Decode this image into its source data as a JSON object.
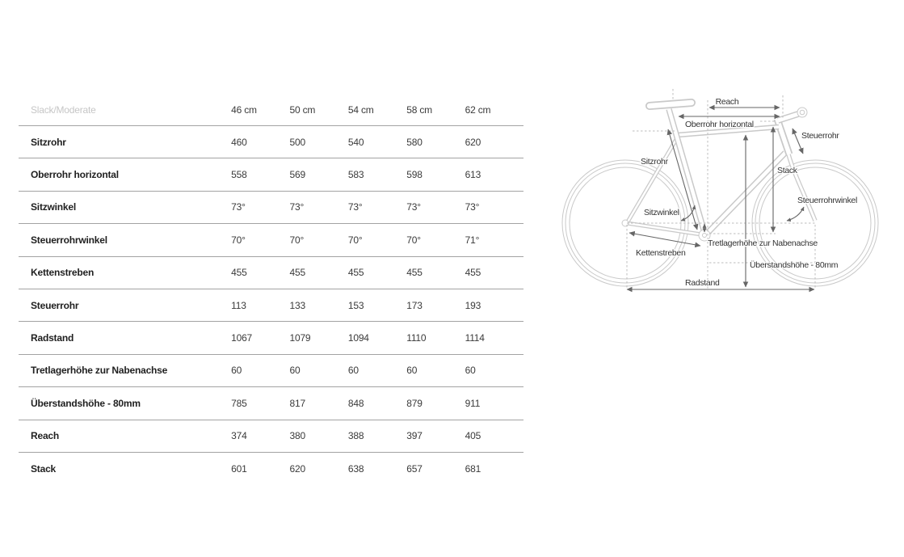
{
  "chart_data": {
    "type": "table",
    "title": "Slack/Moderate",
    "columns": [
      "46 cm",
      "50 cm",
      "54 cm",
      "58 cm",
      "62 cm"
    ],
    "rows": [
      {
        "label": "Sitzrohr",
        "values": [
          "460",
          "500",
          "540",
          "580",
          "620"
        ]
      },
      {
        "label": "Oberrohr horizontal",
        "values": [
          "558",
          "569",
          "583",
          "598",
          "613"
        ]
      },
      {
        "label": "Sitzwinkel",
        "values": [
          "73°",
          "73°",
          "73°",
          "73°",
          "73°"
        ]
      },
      {
        "label": "Steuerrohrwinkel",
        "values": [
          "70°",
          "70°",
          "70°",
          "70°",
          "71°"
        ]
      },
      {
        "label": "Kettenstreben",
        "values": [
          "455",
          "455",
          "455",
          "455",
          "455"
        ]
      },
      {
        "label": "Steuerrohr",
        "values": [
          "113",
          "133",
          "153",
          "173",
          "193"
        ]
      },
      {
        "label": "Radstand",
        "values": [
          "1067",
          "1079",
          "1094",
          "1110",
          "1114"
        ]
      },
      {
        "label": "Tretlagerhöhe zur Nabenachse",
        "values": [
          "60",
          "60",
          "60",
          "60",
          "60"
        ]
      },
      {
        "label": "Überstandshöhe - 80mm",
        "values": [
          "785",
          "817",
          "848",
          "879",
          "911"
        ]
      },
      {
        "label": "Reach",
        "values": [
          "374",
          "380",
          "388",
          "397",
          "405"
        ]
      },
      {
        "label": "Stack",
        "values": [
          "601",
          "620",
          "638",
          "657",
          "681"
        ]
      }
    ]
  },
  "diagram": {
    "labels": {
      "reach": "Reach",
      "oberrohr_horizontal": "Oberrohr horizontal",
      "steuerrohr": "Steuerrohr",
      "sitzrohr": "Sitzrohr",
      "stack": "Stack",
      "steuerrohrwinkel": "Steuerrohrwinkel",
      "sitzwinkel": "Sitzwinkel",
      "kettenstreben": "Kettenstreben",
      "tretlagerhoehe": "Tretlagerhöhe zur Nabenachse",
      "ueberstandshoehe": "Überstandshöhe - 80mm",
      "radstand": "Radstand"
    },
    "colors": {
      "bike_outline": "#c9c9c9",
      "dimension_lines": "#666666",
      "guide_dashed": "#bdbdbd",
      "label_text": "#333333",
      "header_muted": "#c6c6c6",
      "table_border": "#a3a3a3"
    }
  }
}
